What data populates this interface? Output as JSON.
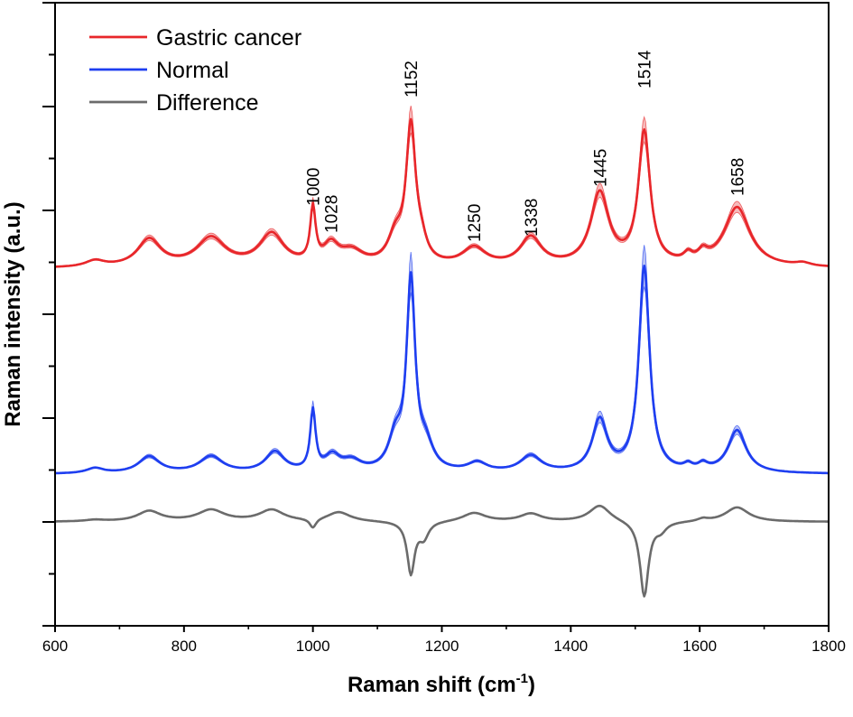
{
  "chart_data": {
    "type": "line",
    "title": "",
    "xlabel": "Raman shift (cm",
    "xlabel_sup": "-1",
    "xlabel_close": ")",
    "ylabel": "Raman intensity (a.u.)",
    "xlim": [
      600,
      1800
    ],
    "ylim": [
      -2,
      10
    ],
    "x_ticks": [
      600,
      800,
      1000,
      1200,
      1400,
      1600,
      1800
    ],
    "x_tick_labels": [
      "600",
      "800",
      "1000",
      "1200",
      "1400",
      "1600",
      "1800"
    ],
    "y_tick_labels_shown": false,
    "legend_position": "top-left",
    "series": [
      {
        "name": "Gastric cancer",
        "color": "#e8262a",
        "band_color": "#f4a9aa",
        "baseline": 4.88,
        "peaks": [
          {
            "x": 662,
            "height": 0.12,
            "width": 18
          },
          {
            "x": 746,
            "height": 0.53,
            "width": 22
          },
          {
            "x": 842,
            "height": 0.55,
            "width": 27
          },
          {
            "x": 936,
            "height": 0.62,
            "width": 23
          },
          {
            "x": 1000,
            "height": 1.04,
            "width": 5
          },
          {
            "x": 1028,
            "height": 0.37,
            "width": 14
          },
          {
            "x": 1060,
            "height": 0.27,
            "width": 22
          },
          {
            "x": 1128,
            "height": 0.5,
            "width": 14
          },
          {
            "x": 1152,
            "height": 2.6,
            "width": 9
          },
          {
            "x": 1168,
            "height": 0.3,
            "width": 10
          },
          {
            "x": 1250,
            "height": 0.35,
            "width": 22
          },
          {
            "x": 1338,
            "height": 0.55,
            "width": 20
          },
          {
            "x": 1445,
            "height": 1.4,
            "width": 17
          },
          {
            "x": 1514,
            "height": 2.55,
            "width": 11
          },
          {
            "x": 1582,
            "height": 0.15,
            "width": 8
          },
          {
            "x": 1605,
            "height": 0.18,
            "width": 9
          },
          {
            "x": 1658,
            "height": 1.15,
            "width": 24
          },
          {
            "x": 1760,
            "height": 0.06,
            "width": 14
          }
        ],
        "band": 0.09
      },
      {
        "name": "Normal",
        "color": "#1e3ef0",
        "band_color": "#a9b4f4",
        "baseline": 0.92,
        "peaks": [
          {
            "x": 662,
            "height": 0.1,
            "width": 16
          },
          {
            "x": 746,
            "height": 0.32,
            "width": 20
          },
          {
            "x": 842,
            "height": 0.32,
            "width": 22
          },
          {
            "x": 941,
            "height": 0.4,
            "width": 18
          },
          {
            "x": 1000,
            "height": 1.15,
            "width": 5
          },
          {
            "x": 1030,
            "height": 0.3,
            "width": 14
          },
          {
            "x": 1060,
            "height": 0.2,
            "width": 18
          },
          {
            "x": 1128,
            "height": 0.6,
            "width": 13
          },
          {
            "x": 1152,
            "height": 3.6,
            "width": 8
          },
          {
            "x": 1175,
            "height": 0.45,
            "width": 14
          },
          {
            "x": 1255,
            "height": 0.18,
            "width": 18
          },
          {
            "x": 1338,
            "height": 0.32,
            "width": 20
          },
          {
            "x": 1445,
            "height": 1.0,
            "width": 14
          },
          {
            "x": 1514,
            "height": 3.95,
            "width": 10
          },
          {
            "x": 1582,
            "height": 0.1,
            "width": 8
          },
          {
            "x": 1605,
            "height": 0.12,
            "width": 9
          },
          {
            "x": 1658,
            "height": 0.82,
            "width": 17
          }
        ],
        "band": 0.1
      },
      {
        "name": "Difference",
        "color": "#6b6b6b",
        "band_color": "",
        "baseline": 0.0,
        "peaks": [
          {
            "x": 662,
            "height": 0.03,
            "width": 18
          },
          {
            "x": 746,
            "height": 0.2,
            "width": 22
          },
          {
            "x": 842,
            "height": 0.22,
            "width": 25
          },
          {
            "x": 936,
            "height": 0.22,
            "width": 23
          },
          {
            "x": 1000,
            "height": -0.18,
            "width": 6
          },
          {
            "x": 1040,
            "height": 0.18,
            "width": 22
          },
          {
            "x": 1152,
            "height": -1.0,
            "width": 7
          },
          {
            "x": 1172,
            "height": -0.3,
            "width": 9
          },
          {
            "x": 1250,
            "height": 0.17,
            "width": 22
          },
          {
            "x": 1338,
            "height": 0.15,
            "width": 20
          },
          {
            "x": 1445,
            "height": 0.32,
            "width": 20
          },
          {
            "x": 1514,
            "height": -1.45,
            "width": 8
          },
          {
            "x": 1540,
            "height": -0.15,
            "width": 10
          },
          {
            "x": 1605,
            "height": 0.05,
            "width": 10
          },
          {
            "x": 1658,
            "height": 0.28,
            "width": 22
          }
        ],
        "band": 0
      }
    ],
    "annotations": [
      {
        "text": "1000",
        "x": 1000
      },
      {
        "text": "1028",
        "x": 1028
      },
      {
        "text": "1152",
        "x": 1152
      },
      {
        "text": "1250",
        "x": 1250
      },
      {
        "text": "1338",
        "x": 1338
      },
      {
        "text": "1445",
        "x": 1445
      },
      {
        "text": "1514",
        "x": 1514
      },
      {
        "text": "1658",
        "x": 1658
      }
    ]
  }
}
